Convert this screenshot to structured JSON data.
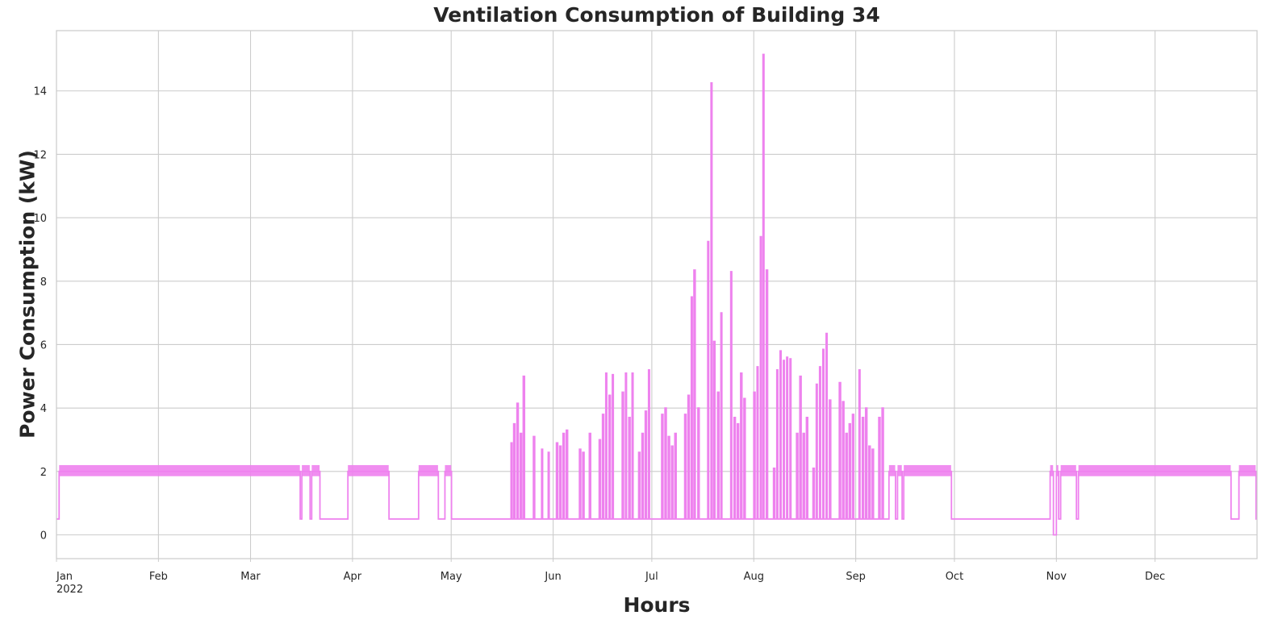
{
  "chart_data": {
    "type": "line",
    "title": "Ventilation Consumption of Building 34",
    "xlabel": "Hours",
    "ylabel": "Power Consumption (kW)",
    "year_label": "2022",
    "x_tick_labels": [
      "Jan",
      "Feb",
      "Mar",
      "Apr",
      "May",
      "Jun",
      "Jul",
      "Aug",
      "Sep",
      "Oct",
      "Nov",
      "Dec"
    ],
    "x_tick_days": [
      0,
      31,
      59,
      90,
      120,
      151,
      181,
      212,
      243,
      273,
      304,
      334
    ],
    "xlim_days": [
      0,
      365
    ],
    "yticks": [
      0,
      2,
      4,
      6,
      8,
      10,
      12,
      14
    ],
    "ylim": [
      -0.75,
      15.9
    ],
    "grid": true,
    "series": [
      {
        "name": "Ventilation",
        "color": "#ee82ee",
        "x_unit": "day_of_year",
        "baseline_high": 1.85,
        "baseline_low": 0.5,
        "points": [
          [
            0,
            0.5
          ],
          [
            0.7,
            0.5
          ],
          [
            0.8,
            2.0
          ],
          [
            74,
            2.0
          ],
          [
            74.1,
            0.5
          ],
          [
            74.5,
            0.5
          ],
          [
            74.6,
            2.0
          ],
          [
            77,
            2.0
          ],
          [
            77.1,
            0.5
          ],
          [
            77.5,
            0.5
          ],
          [
            77.6,
            2.0
          ],
          [
            80,
            2.0
          ],
          [
            80.1,
            0.5
          ],
          [
            88.5,
            0.5
          ],
          [
            88.6,
            2.0
          ],
          [
            101,
            2.0
          ],
          [
            101.1,
            0.5
          ],
          [
            110,
            0.5
          ],
          [
            110.1,
            2.0
          ],
          [
            116,
            2.0
          ],
          [
            116.1,
            0.5
          ],
          [
            118,
            0.5
          ],
          [
            118.1,
            2.0
          ],
          [
            120,
            2.0
          ],
          [
            120.1,
            0.5
          ],
          [
            138,
            0.5
          ],
          [
            138.2,
            2.9
          ],
          [
            138.5,
            0.5
          ],
          [
            139,
            3.5
          ],
          [
            139.4,
            0.5
          ],
          [
            140,
            4.15
          ],
          [
            140.4,
            0.5
          ],
          [
            141,
            3.2
          ],
          [
            141.4,
            0.5
          ],
          [
            141.9,
            5.0
          ],
          [
            142.3,
            0.5
          ],
          [
            145,
            3.1
          ],
          [
            145.4,
            0.5
          ],
          [
            147.5,
            2.7
          ],
          [
            147.8,
            0.5
          ],
          [
            149.5,
            2.6
          ],
          [
            149.8,
            0.5
          ],
          [
            152,
            2.9
          ],
          [
            152.4,
            0.5
          ],
          [
            153,
            2.8
          ],
          [
            153.4,
            0.5
          ],
          [
            154,
            3.2
          ],
          [
            154.4,
            0.5
          ],
          [
            155,
            3.3
          ],
          [
            155.4,
            0.5
          ],
          [
            159,
            2.7
          ],
          [
            159.4,
            0.5
          ],
          [
            160,
            2.6
          ],
          [
            160.4,
            0.5
          ],
          [
            162,
            3.2
          ],
          [
            162.4,
            0.5
          ],
          [
            165,
            3.0
          ],
          [
            165.4,
            0.5
          ],
          [
            166,
            3.8
          ],
          [
            166.4,
            0.5
          ],
          [
            167,
            5.1
          ],
          [
            167.3,
            0.5
          ],
          [
            168,
            4.4
          ],
          [
            168.4,
            0.5
          ],
          [
            169,
            5.05
          ],
          [
            169.3,
            0.5
          ],
          [
            172,
            4.5
          ],
          [
            172.4,
            0.5
          ],
          [
            173,
            5.1
          ],
          [
            173.3,
            0.5
          ],
          [
            174,
            3.7
          ],
          [
            174.4,
            0.5
          ],
          [
            175,
            5.1
          ],
          [
            175.3,
            0.5
          ],
          [
            177,
            2.6
          ],
          [
            177.4,
            0.5
          ],
          [
            178,
            3.2
          ],
          [
            178.4,
            0.5
          ],
          [
            179,
            3.9
          ],
          [
            179.4,
            0.5
          ],
          [
            180,
            5.2
          ],
          [
            180.3,
            0.5
          ],
          [
            184,
            3.8
          ],
          [
            184.4,
            0.5
          ],
          [
            185,
            4.0
          ],
          [
            185.4,
            0.5
          ],
          [
            186,
            3.1
          ],
          [
            186.4,
            0.5
          ],
          [
            187,
            2.8
          ],
          [
            187.4,
            0.5
          ],
          [
            188,
            3.2
          ],
          [
            188.4,
            0.5
          ],
          [
            191,
            3.8
          ],
          [
            191.4,
            0.5
          ],
          [
            192,
            4.4
          ],
          [
            192.4,
            0.5
          ],
          [
            193,
            7.5
          ],
          [
            193.3,
            0.5
          ],
          [
            193.8,
            8.35
          ],
          [
            194.2,
            0.5
          ],
          [
            195,
            4.0
          ],
          [
            195.4,
            0.5
          ],
          [
            198,
            9.25
          ],
          [
            198.3,
            0.5
          ],
          [
            199,
            14.25
          ],
          [
            199.3,
            0.5
          ],
          [
            199.8,
            6.1
          ],
          [
            200.2,
            0.5
          ],
          [
            201,
            4.5
          ],
          [
            201.4,
            0.5
          ],
          [
            202,
            7.0
          ],
          [
            202.3,
            0.5
          ],
          [
            205,
            8.3
          ],
          [
            205.3,
            0.5
          ],
          [
            206,
            3.7
          ],
          [
            206.4,
            0.5
          ],
          [
            207,
            3.5
          ],
          [
            207.4,
            0.5
          ],
          [
            208,
            5.1
          ],
          [
            208.4,
            0.5
          ],
          [
            209,
            4.3
          ],
          [
            209.4,
            0.5
          ],
          [
            212,
            4.5
          ],
          [
            212.4,
            0.5
          ],
          [
            213,
            5.3
          ],
          [
            213.3,
            0.5
          ],
          [
            214,
            9.4
          ],
          [
            214.3,
            0.5
          ],
          [
            214.8,
            15.15
          ],
          [
            215.1,
            0.5
          ],
          [
            215.8,
            8.35
          ],
          [
            216.2,
            0.5
          ],
          [
            218,
            2.1
          ],
          [
            218.4,
            0.5
          ],
          [
            219,
            5.2
          ],
          [
            219.3,
            0.5
          ],
          [
            220,
            5.8
          ],
          [
            220.3,
            0.5
          ],
          [
            221,
            5.5
          ],
          [
            221.3,
            0.5
          ],
          [
            222,
            5.6
          ],
          [
            222.3,
            0.5
          ],
          [
            223,
            5.55
          ],
          [
            223.3,
            0.5
          ],
          [
            225,
            3.2
          ],
          [
            225.4,
            0.5
          ],
          [
            226,
            5.0
          ],
          [
            226.4,
            0.5
          ],
          [
            227,
            3.2
          ],
          [
            227.4,
            0.5
          ],
          [
            228,
            3.7
          ],
          [
            228.4,
            0.5
          ],
          [
            230,
            2.1
          ],
          [
            230.4,
            0.5
          ],
          [
            231,
            4.75
          ],
          [
            231.3,
            0.5
          ],
          [
            232,
            5.3
          ],
          [
            232.3,
            0.5
          ],
          [
            233,
            5.85
          ],
          [
            233.3,
            0.5
          ],
          [
            234,
            6.35
          ],
          [
            234.3,
            0.5
          ],
          [
            235,
            4.25
          ],
          [
            235.4,
            0.5
          ],
          [
            238,
            4.8
          ],
          [
            238.4,
            0.5
          ],
          [
            239,
            4.2
          ],
          [
            239.4,
            0.5
          ],
          [
            240,
            3.2
          ],
          [
            240.4,
            0.5
          ],
          [
            241,
            3.5
          ],
          [
            241.4,
            0.5
          ],
          [
            242,
            3.8
          ],
          [
            242.4,
            0.5
          ],
          [
            244,
            5.2
          ],
          [
            244.3,
            0.5
          ],
          [
            245,
            3.7
          ],
          [
            245.4,
            0.5
          ],
          [
            246,
            4.0
          ],
          [
            246.4,
            0.5
          ],
          [
            247,
            2.8
          ],
          [
            247.4,
            0.5
          ],
          [
            248,
            2.7
          ],
          [
            248.4,
            0.5
          ],
          [
            250,
            3.7
          ],
          [
            250.4,
            0.5
          ],
          [
            251,
            4.0
          ],
          [
            251.4,
            0.5
          ],
          [
            253,
            0.5
          ],
          [
            253.1,
            2.0
          ],
          [
            255,
            2.0
          ],
          [
            255.1,
            0.5
          ],
          [
            255.6,
            0.5
          ],
          [
            255.7,
            2.0
          ],
          [
            257,
            2.0
          ],
          [
            257.1,
            0.5
          ],
          [
            257.5,
            0.5
          ],
          [
            257.6,
            2.0
          ],
          [
            272,
            2.0
          ],
          [
            272.1,
            0.5
          ],
          [
            302,
            0.5
          ],
          [
            302.1,
            2.0
          ],
          [
            303,
            2.0
          ],
          [
            303.1,
            0.0
          ],
          [
            303.9,
            0.0
          ],
          [
            304,
            2.0
          ],
          [
            304.6,
            2.0
          ],
          [
            304.7,
            0.5
          ],
          [
            305.2,
            0.5
          ],
          [
            305.3,
            2.0
          ],
          [
            310,
            2.0
          ],
          [
            310.1,
            0.5
          ],
          [
            310.6,
            0.5
          ],
          [
            310.7,
            2.0
          ],
          [
            357,
            2.0
          ],
          [
            357.1,
            0.5
          ],
          [
            359.4,
            0.5
          ],
          [
            359.5,
            2.0
          ],
          [
            364.6,
            2.0
          ],
          [
            364.7,
            0.5
          ],
          [
            365,
            0.5
          ]
        ]
      }
    ]
  }
}
